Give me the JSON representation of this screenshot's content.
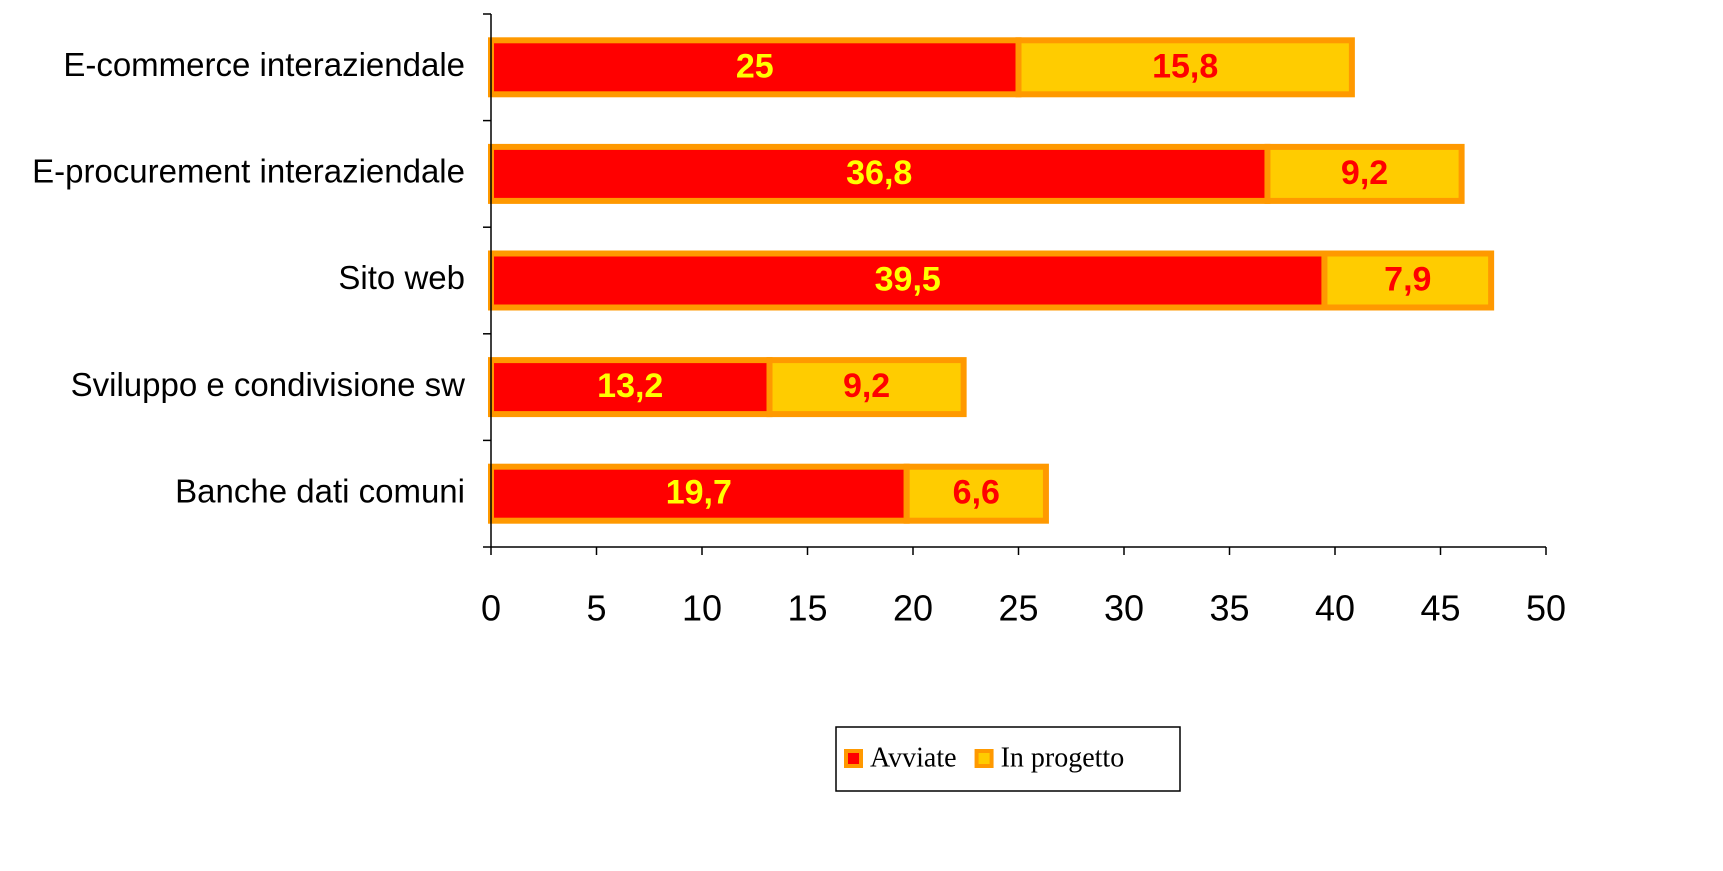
{
  "chart_data": {
    "type": "stacked-barh",
    "categories": [
      "E-commerce interaziendale",
      "E-procurement interaziendale",
      "Sito web",
      "Sviluppo e condivisione sw",
      "Banche dati comuni"
    ],
    "series": [
      {
        "name": "Avviate",
        "color": "#ff0000",
        "label_color": "#ffff00",
        "values": [
          25,
          36.8,
          39.5,
          13.2,
          19.7
        ],
        "value_labels": [
          "25",
          "36,8",
          "39,5",
          "13,2",
          "19,7"
        ]
      },
      {
        "name": "In progetto",
        "color": "#ffcc00",
        "label_color": "#ff0000",
        "values": [
          15.8,
          9.2,
          7.9,
          9.2,
          6.6
        ],
        "value_labels": [
          "15,8",
          "9,2",
          "7,9",
          "9,2",
          "6,6"
        ]
      }
    ],
    "bar_edge_color": "#ff9900",
    "xlim": [
      0,
      50
    ],
    "xticks": [
      0,
      5,
      10,
      15,
      20,
      25,
      30,
      35,
      40,
      45,
      50
    ],
    "legend": "bottom"
  }
}
